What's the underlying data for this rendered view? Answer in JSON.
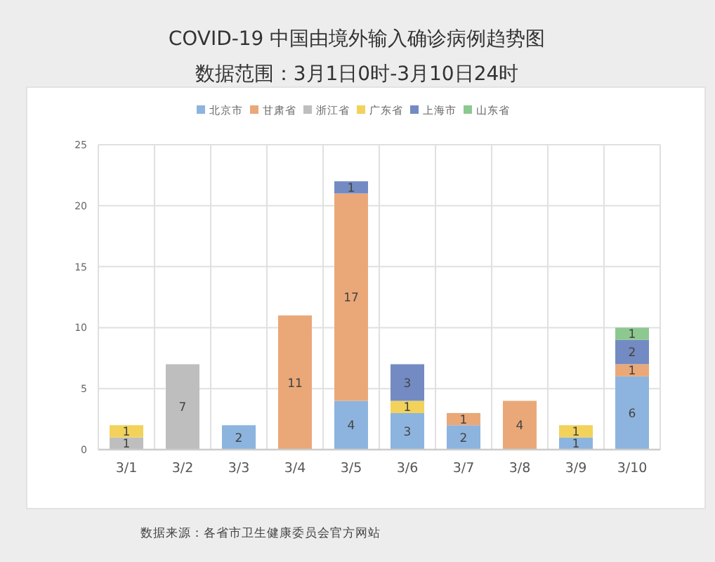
{
  "chart_data": {
    "type": "bar",
    "title": "COVID-19 中国由境外输入确诊病例趋势图",
    "subtitle": "数据范围：3月1日0时-3月10日24时",
    "categories": [
      "3/1",
      "3/2",
      "3/3",
      "3/4",
      "3/5",
      "3/6",
      "3/7",
      "3/8",
      "3/9",
      "3/10"
    ],
    "series": [
      {
        "name": "北京市",
        "color": "#8cb4de",
        "values": [
          null,
          null,
          2,
          null,
          4,
          3,
          2,
          null,
          1,
          6
        ]
      },
      {
        "name": "甘肃省",
        "color": "#eaa878",
        "values": [
          null,
          null,
          null,
          11,
          17,
          null,
          1,
          4,
          null,
          1
        ]
      },
      {
        "name": "浙江省",
        "color": "#bebebe",
        "values": [
          1,
          7,
          null,
          null,
          null,
          null,
          null,
          null,
          null,
          null
        ]
      },
      {
        "name": "广东省",
        "color": "#f2d25a",
        "values": [
          1,
          null,
          null,
          null,
          null,
          1,
          null,
          null,
          1,
          null
        ]
      },
      {
        "name": "上海市",
        "color": "#738bc2",
        "values": [
          null,
          null,
          null,
          null,
          1,
          3,
          null,
          null,
          null,
          2
        ]
      },
      {
        "name": "山东省",
        "color": "#8cc890",
        "values": [
          null,
          null,
          null,
          null,
          null,
          null,
          null,
          null,
          null,
          1
        ]
      }
    ],
    "stacked": true,
    "data_labels": true,
    "ylim": [
      0,
      25
    ],
    "yticks": [
      0,
      5,
      10,
      15,
      20,
      25
    ],
    "grid": true,
    "legend": "top",
    "annotations": [
      "数据来源：各省市卫生健康委员会官方网站"
    ]
  }
}
